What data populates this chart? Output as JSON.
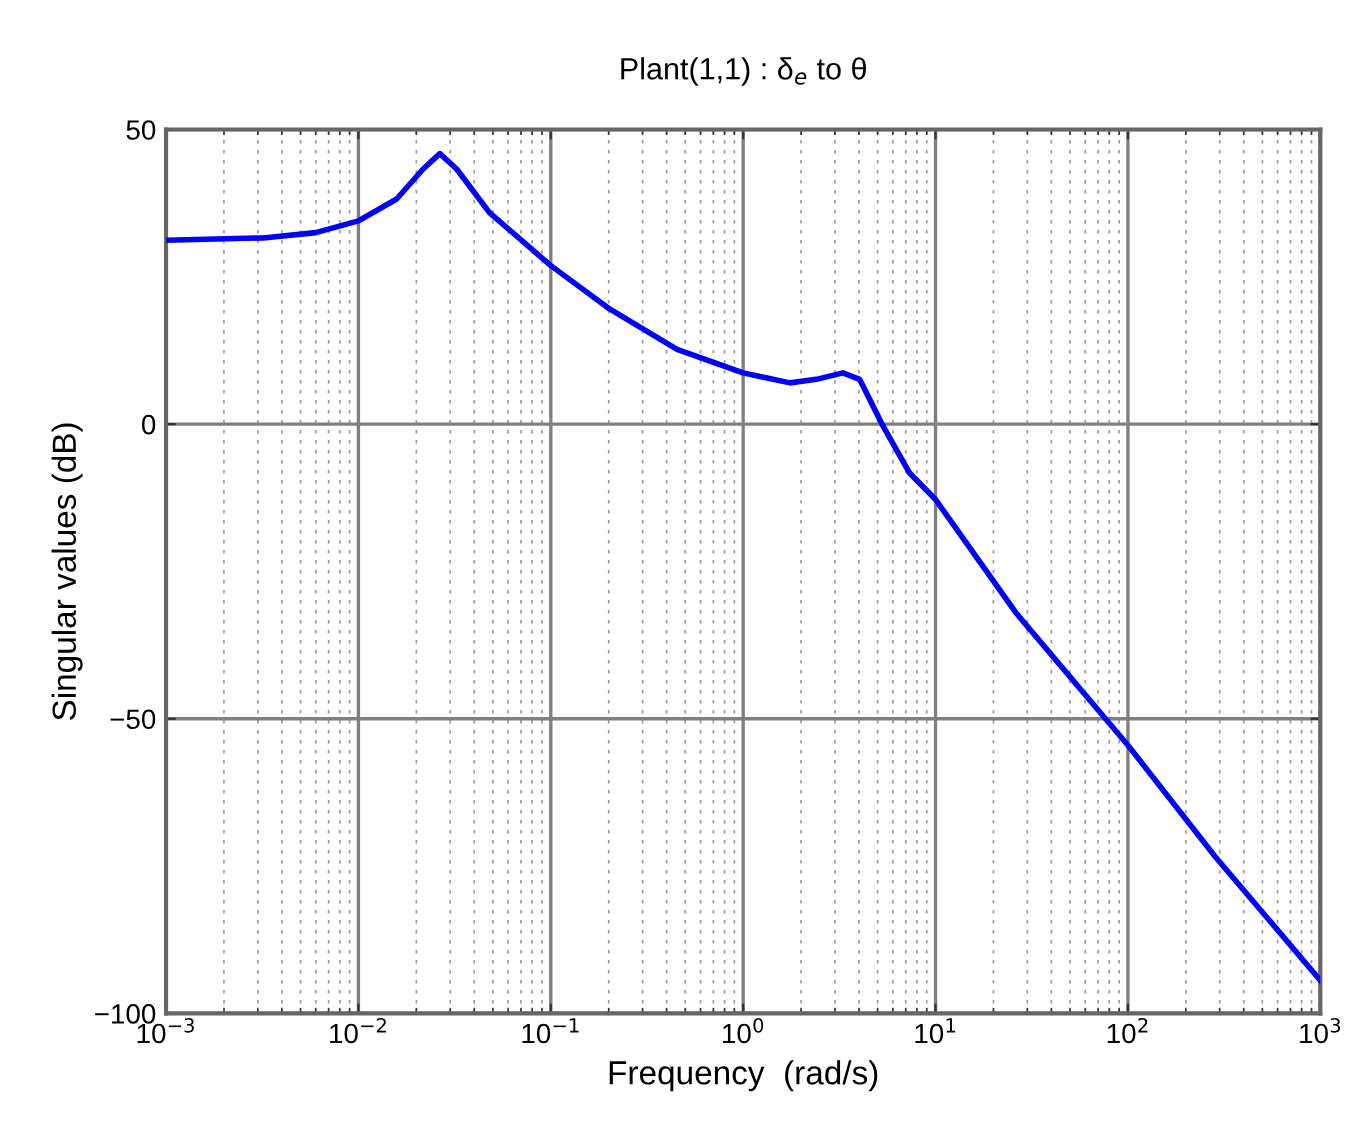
{
  "chart_data": {
    "type": "line",
    "title": "Plant(1,1) : δ$_{e}$ to θ",
    "xlabel": "Frequency  (rad/s)",
    "ylabel": "Singular values (dB)",
    "log": "x",
    "grid": true,
    "marker": "none",
    "line_style": "solid",
    "xlim": [
      0.001,
      1000
    ],
    "ylim": [
      -100,
      50
    ],
    "xticks": [
      {
        "value": 0.001,
        "label": "10$^{−3}$"
      },
      {
        "value": 0.01,
        "label": "10$^{−2}$"
      },
      {
        "value": 0.1,
        "label": "10$^{−1}$"
      },
      {
        "value": 1,
        "label": "10$^{0}$"
      },
      {
        "value": 10,
        "label": "10$^{1}$"
      },
      {
        "value": 100,
        "label": "10$^{2}$"
      },
      {
        "value": 1000,
        "label": "10$^{3}$"
      }
    ],
    "yticks": [
      -100,
      -50,
      0,
      50
    ],
    "series": [
      {
        "color": "#0000ff",
        "x": [
          0.001,
          0.0032,
          0.006,
          0.01,
          0.0158,
          0.0217,
          0.0265,
          0.0324,
          0.048,
          0.1,
          0.203,
          0.453,
          1.0,
          1.75,
          2.4,
          3.3,
          4.03,
          5.33,
          7.33,
          10,
          26.3,
          100,
          286,
          1000
        ],
        "values": [
          31.2,
          31.6,
          32.5,
          34.5,
          38.2,
          43.3,
          45.9,
          43.3,
          35.9,
          26.9,
          19.5,
          12.7,
          8.7,
          7.0,
          7.6,
          8.7,
          7.6,
          -0.3,
          -8.3,
          -12.8,
          -32.1,
          -54.5,
          -73.5,
          -94.4
        ]
      }
    ]
  }
}
